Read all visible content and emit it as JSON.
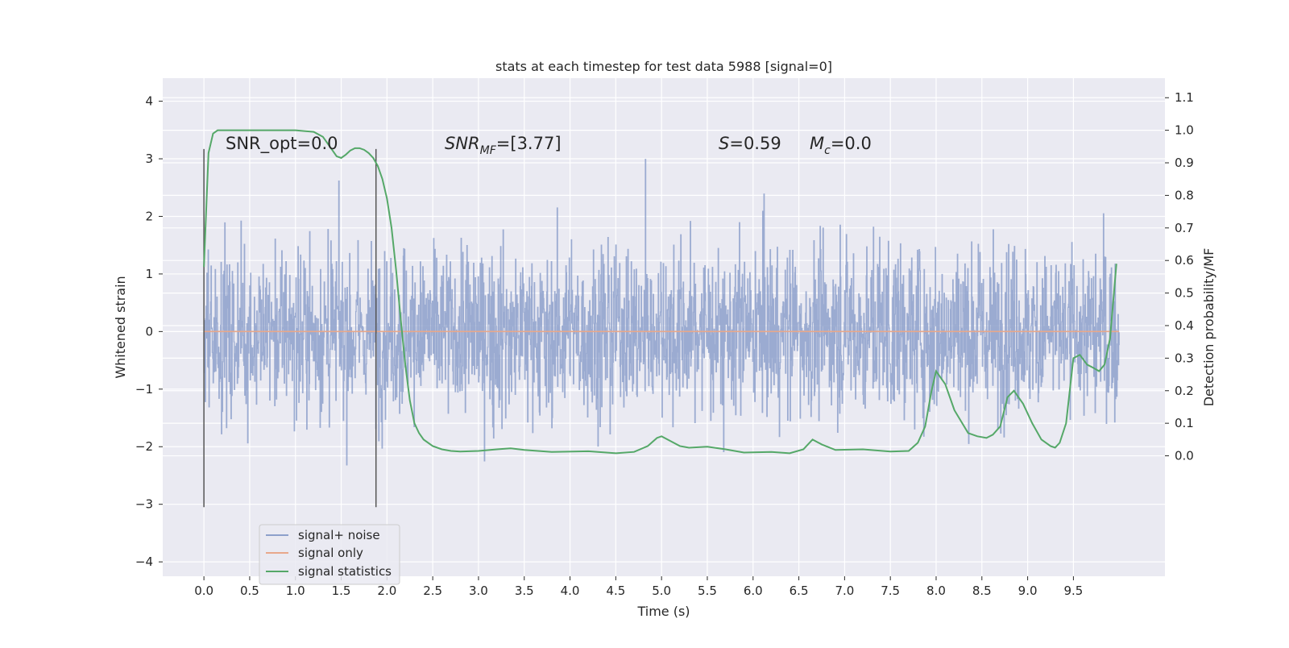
{
  "chart_data": {
    "type": "line",
    "title": "stats at each timestep for test data 5988 [signal=0]",
    "xlabel": "Time (s)",
    "ylabel": "Whitened strain",
    "ylabel_right": "Detection probability/MF",
    "xlim": [
      -0.45,
      10.5
    ],
    "ylim": [
      -4.25,
      4.4
    ],
    "ylim_right": [
      -0.37,
      1.16
    ],
    "x_ticks": [
      "0.0",
      "0.5",
      "1.0",
      "1.5",
      "2.0",
      "2.5",
      "3.0",
      "3.5",
      "4.0",
      "4.5",
      "5.0",
      "5.5",
      "6.0",
      "6.5",
      "7.0",
      "7.5",
      "8.0",
      "8.5",
      "9.0",
      "9.5"
    ],
    "y_ticks_left": [
      "4",
      "3",
      "2",
      "1",
      "0",
      "−1",
      "−2",
      "−3",
      "−4"
    ],
    "y_ticks_right": [
      "1.1",
      "1.0",
      "0.9",
      "0.8",
      "0.7",
      "0.6",
      "0.5",
      "0.4",
      "0.3",
      "0.2",
      "0.1",
      "0.0"
    ],
    "grid": true,
    "legend_position": "lower-left",
    "annotations": {
      "snr_opt": "SNR_opt=0.0",
      "snr_mf_main": "SNR",
      "snr_mf_sub": "MF",
      "snr_mf_value": "=[3.77]",
      "s_var": "S",
      "s_value": "=0.59",
      "mc_var": "M",
      "mc_sub": "c",
      "mc_value": "=0.0"
    },
    "vertical_markers_x": [
      0.0,
      1.88
    ],
    "series": [
      {
        "name": "signal+ noise",
        "color": "#8da0cb",
        "description": "whitened noise strain, approx. uniform noise about 0 over 0-10 s",
        "noise_seed": 5988,
        "x_range": [
          0.0,
          10.0
        ]
      },
      {
        "name": "signal only",
        "color": "#e8a88b",
        "x": [
          0.0,
          10.0
        ],
        "y": [
          0.0,
          0.0
        ]
      },
      {
        "name": "signal statistics",
        "color": "#55a868",
        "axis": "right",
        "x": [
          0.0,
          0.05,
          0.1,
          0.15,
          0.25,
          0.4,
          0.6,
          0.8,
          1.0,
          1.2,
          1.3,
          1.4,
          1.45,
          1.5,
          1.55,
          1.6,
          1.65,
          1.7,
          1.75,
          1.8,
          1.85,
          1.9,
          1.95,
          2.0,
          2.05,
          2.1,
          2.15,
          2.2,
          2.25,
          2.3,
          2.35,
          2.4,
          2.5,
          2.6,
          2.7,
          2.8,
          3.0,
          3.2,
          3.35,
          3.5,
          3.8,
          4.2,
          4.5,
          4.7,
          4.85,
          4.95,
          5.0,
          5.1,
          5.2,
          5.3,
          5.5,
          5.7,
          5.9,
          6.2,
          6.4,
          6.55,
          6.65,
          6.75,
          6.9,
          7.2,
          7.5,
          7.7,
          7.8,
          7.88,
          7.95,
          8.0,
          8.1,
          8.2,
          8.35,
          8.45,
          8.55,
          8.62,
          8.7,
          8.78,
          8.85,
          8.95,
          9.05,
          9.15,
          9.25,
          9.3,
          9.35,
          9.42,
          9.5,
          9.57,
          9.65,
          9.72,
          9.78,
          9.84,
          9.9,
          9.97
        ],
        "y": [
          0.58,
          0.93,
          0.99,
          1.0,
          1.0,
          1.0,
          1.0,
          1.0,
          1.0,
          0.995,
          0.98,
          0.94,
          0.92,
          0.915,
          0.925,
          0.938,
          0.945,
          0.945,
          0.94,
          0.93,
          0.915,
          0.89,
          0.85,
          0.79,
          0.7,
          0.57,
          0.42,
          0.28,
          0.17,
          0.1,
          0.07,
          0.05,
          0.03,
          0.02,
          0.015,
          0.013,
          0.015,
          0.02,
          0.023,
          0.018,
          0.012,
          0.014,
          0.008,
          0.012,
          0.03,
          0.055,
          0.06,
          0.045,
          0.03,
          0.025,
          0.028,
          0.02,
          0.01,
          0.012,
          0.008,
          0.02,
          0.05,
          0.035,
          0.018,
          0.02,
          0.013,
          0.015,
          0.04,
          0.09,
          0.2,
          0.26,
          0.22,
          0.14,
          0.07,
          0.06,
          0.055,
          0.065,
          0.09,
          0.18,
          0.2,
          0.16,
          0.1,
          0.05,
          0.03,
          0.025,
          0.04,
          0.1,
          0.3,
          0.31,
          0.28,
          0.27,
          0.26,
          0.28,
          0.36,
          0.59
        ]
      }
    ]
  }
}
